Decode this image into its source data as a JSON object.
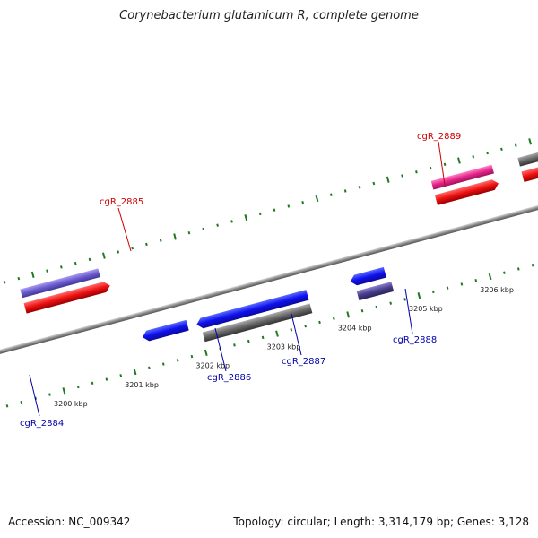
{
  "title": "Corynebacterium glutamicum R, complete genome",
  "footer": {
    "accession": "Accession: NC_009342",
    "summary": "Topology: circular; Length: 3,314,179 bp; Genes: 3,128"
  },
  "map": {
    "ticks": [
      {
        "label": "3200 kbp"
      },
      {
        "label": "3201 kbp"
      },
      {
        "label": "3202 kbp"
      },
      {
        "label": "3203 kbp"
      },
      {
        "label": "3204 kbp"
      },
      {
        "label": "3205 kbp"
      },
      {
        "label": "3206 kbp"
      }
    ],
    "genes": [
      {
        "name": "cgR_2884",
        "color": "#1f3fd0",
        "strand": "minus"
      },
      {
        "name": "cgR_2885",
        "color": "#d41a1a",
        "strand": "plus"
      },
      {
        "name": "cgR_2886",
        "color": "#1f3fd0",
        "strand": "minus"
      },
      {
        "name": "cgR_2887",
        "color": "#1f3fd0",
        "strand": "minus"
      },
      {
        "name": "cgR_2888",
        "color": "#1f3fd0",
        "strand": "minus"
      },
      {
        "name": "cgR_2889",
        "color": "#d41a1a",
        "strand": "plus"
      }
    ],
    "colors": {
      "cds_minus": "#1010ee",
      "cds_plus": "#ee1111",
      "cog_purple": "#6a5acd",
      "cog_green": "#6b8e23",
      "cog_gray": "#666666",
      "cog_pink": "#e6238a",
      "cog_indigo": "#483d8b",
      "backbone": "#888888",
      "ticks": "#1f7a1f"
    }
  }
}
